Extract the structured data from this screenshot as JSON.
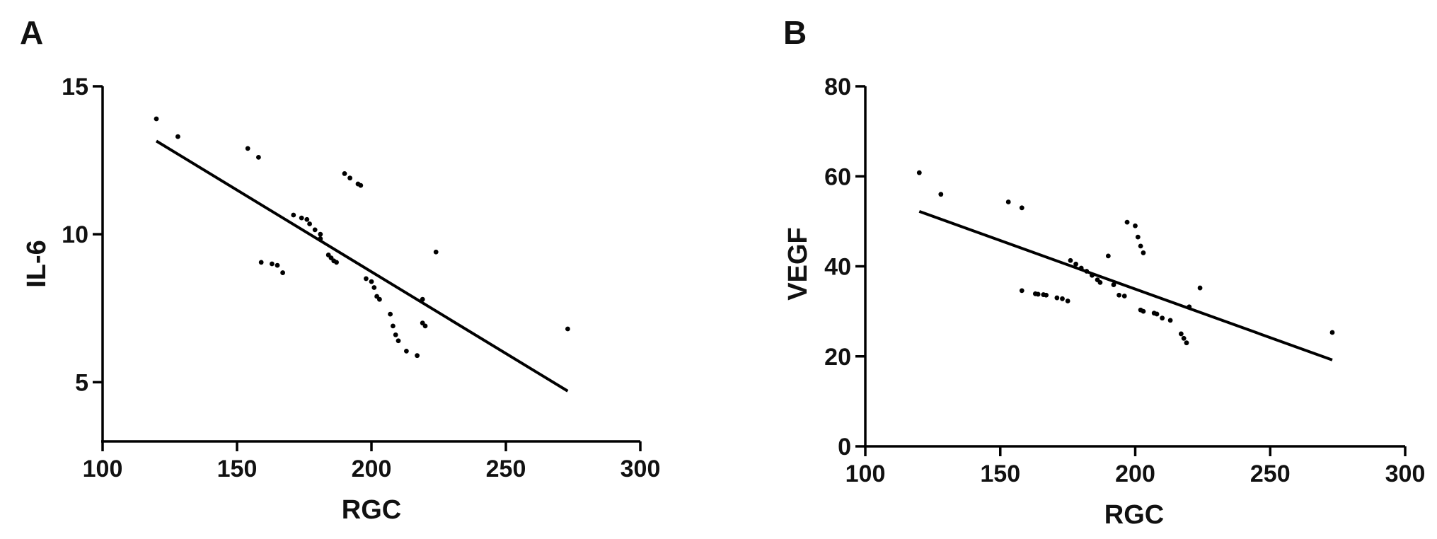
{
  "chart_data": [
    {
      "type": "scatter",
      "panel_label": "A",
      "title": "",
      "xlabel": "RGC",
      "ylabel": "IL-6",
      "xlim": [
        100,
        300
      ],
      "ylim": [
        3,
        15
      ],
      "xticks": [
        100,
        150,
        200,
        250,
        300
      ],
      "yticks": [
        5,
        10,
        15
      ],
      "grid": false,
      "legend": "none",
      "points": [
        [
          120,
          13.9
        ],
        [
          128,
          13.3
        ],
        [
          154,
          12.9
        ],
        [
          158,
          12.6
        ],
        [
          159,
          9.05
        ],
        [
          163,
          9.0
        ],
        [
          165,
          8.95
        ],
        [
          167,
          8.7
        ],
        [
          171,
          10.65
        ],
        [
          174,
          10.55
        ],
        [
          176,
          10.5
        ],
        [
          177,
          10.35
        ],
        [
          179,
          10.15
        ],
        [
          181,
          10.0
        ],
        [
          181,
          9.85
        ],
        [
          184,
          9.3
        ],
        [
          185,
          9.2
        ],
        [
          186,
          9.1
        ],
        [
          187,
          9.05
        ],
        [
          190,
          12.05
        ],
        [
          192,
          11.9
        ],
        [
          195,
          11.7
        ],
        [
          196,
          11.65
        ],
        [
          198,
          8.5
        ],
        [
          200,
          8.4
        ],
        [
          201,
          8.2
        ],
        [
          202,
          7.9
        ],
        [
          203,
          7.8
        ],
        [
          207,
          7.3
        ],
        [
          208,
          6.9
        ],
        [
          209,
          6.6
        ],
        [
          210,
          6.4
        ],
        [
          213,
          6.05
        ],
        [
          217,
          5.9
        ],
        [
          219,
          7.8
        ],
        [
          219,
          7.0
        ],
        [
          220,
          6.9
        ],
        [
          224,
          9.4
        ],
        [
          273,
          6.8
        ]
      ],
      "fit_line": {
        "x": [
          120,
          273
        ],
        "y": [
          13.15,
          4.7
        ]
      }
    },
    {
      "type": "scatter",
      "panel_label": "B",
      "title": "",
      "xlabel": "RGC",
      "ylabel": "VEGF",
      "xlim": [
        100,
        300
      ],
      "ylim": [
        0,
        80
      ],
      "xticks": [
        100,
        150,
        200,
        250,
        300
      ],
      "yticks": [
        0,
        20,
        40,
        60,
        80
      ],
      "grid": false,
      "legend": "none",
      "points": [
        [
          120,
          60.8
        ],
        [
          128,
          56.0
        ],
        [
          153,
          54.3
        ],
        [
          158,
          53.0
        ],
        [
          158,
          34.6
        ],
        [
          163,
          33.9
        ],
        [
          164,
          33.8
        ],
        [
          166,
          33.7
        ],
        [
          167,
          33.6
        ],
        [
          171,
          33.0
        ],
        [
          173,
          32.8
        ],
        [
          175,
          32.3
        ],
        [
          176,
          41.3
        ],
        [
          178,
          40.5
        ],
        [
          180,
          39.6
        ],
        [
          182,
          38.9
        ],
        [
          184,
          38.0
        ],
        [
          186,
          37.0
        ],
        [
          187,
          36.4
        ],
        [
          190,
          42.3
        ],
        [
          192,
          35.9
        ],
        [
          194,
          33.6
        ],
        [
          196,
          33.4
        ],
        [
          197,
          49.8
        ],
        [
          200,
          49.0
        ],
        [
          201,
          46.5
        ],
        [
          202,
          44.5
        ],
        [
          203,
          43.0
        ],
        [
          202,
          30.3
        ],
        [
          203,
          30.0
        ],
        [
          207,
          29.6
        ],
        [
          208,
          29.4
        ],
        [
          210,
          28.5
        ],
        [
          213,
          28.0
        ],
        [
          217,
          25.0
        ],
        [
          218,
          24.0
        ],
        [
          219,
          23.0
        ],
        [
          220,
          31.0
        ],
        [
          224,
          35.2
        ],
        [
          273,
          25.3
        ]
      ],
      "fit_line": {
        "x": [
          120,
          273
        ],
        "y": [
          52.2,
          19.2
        ]
      }
    }
  ]
}
